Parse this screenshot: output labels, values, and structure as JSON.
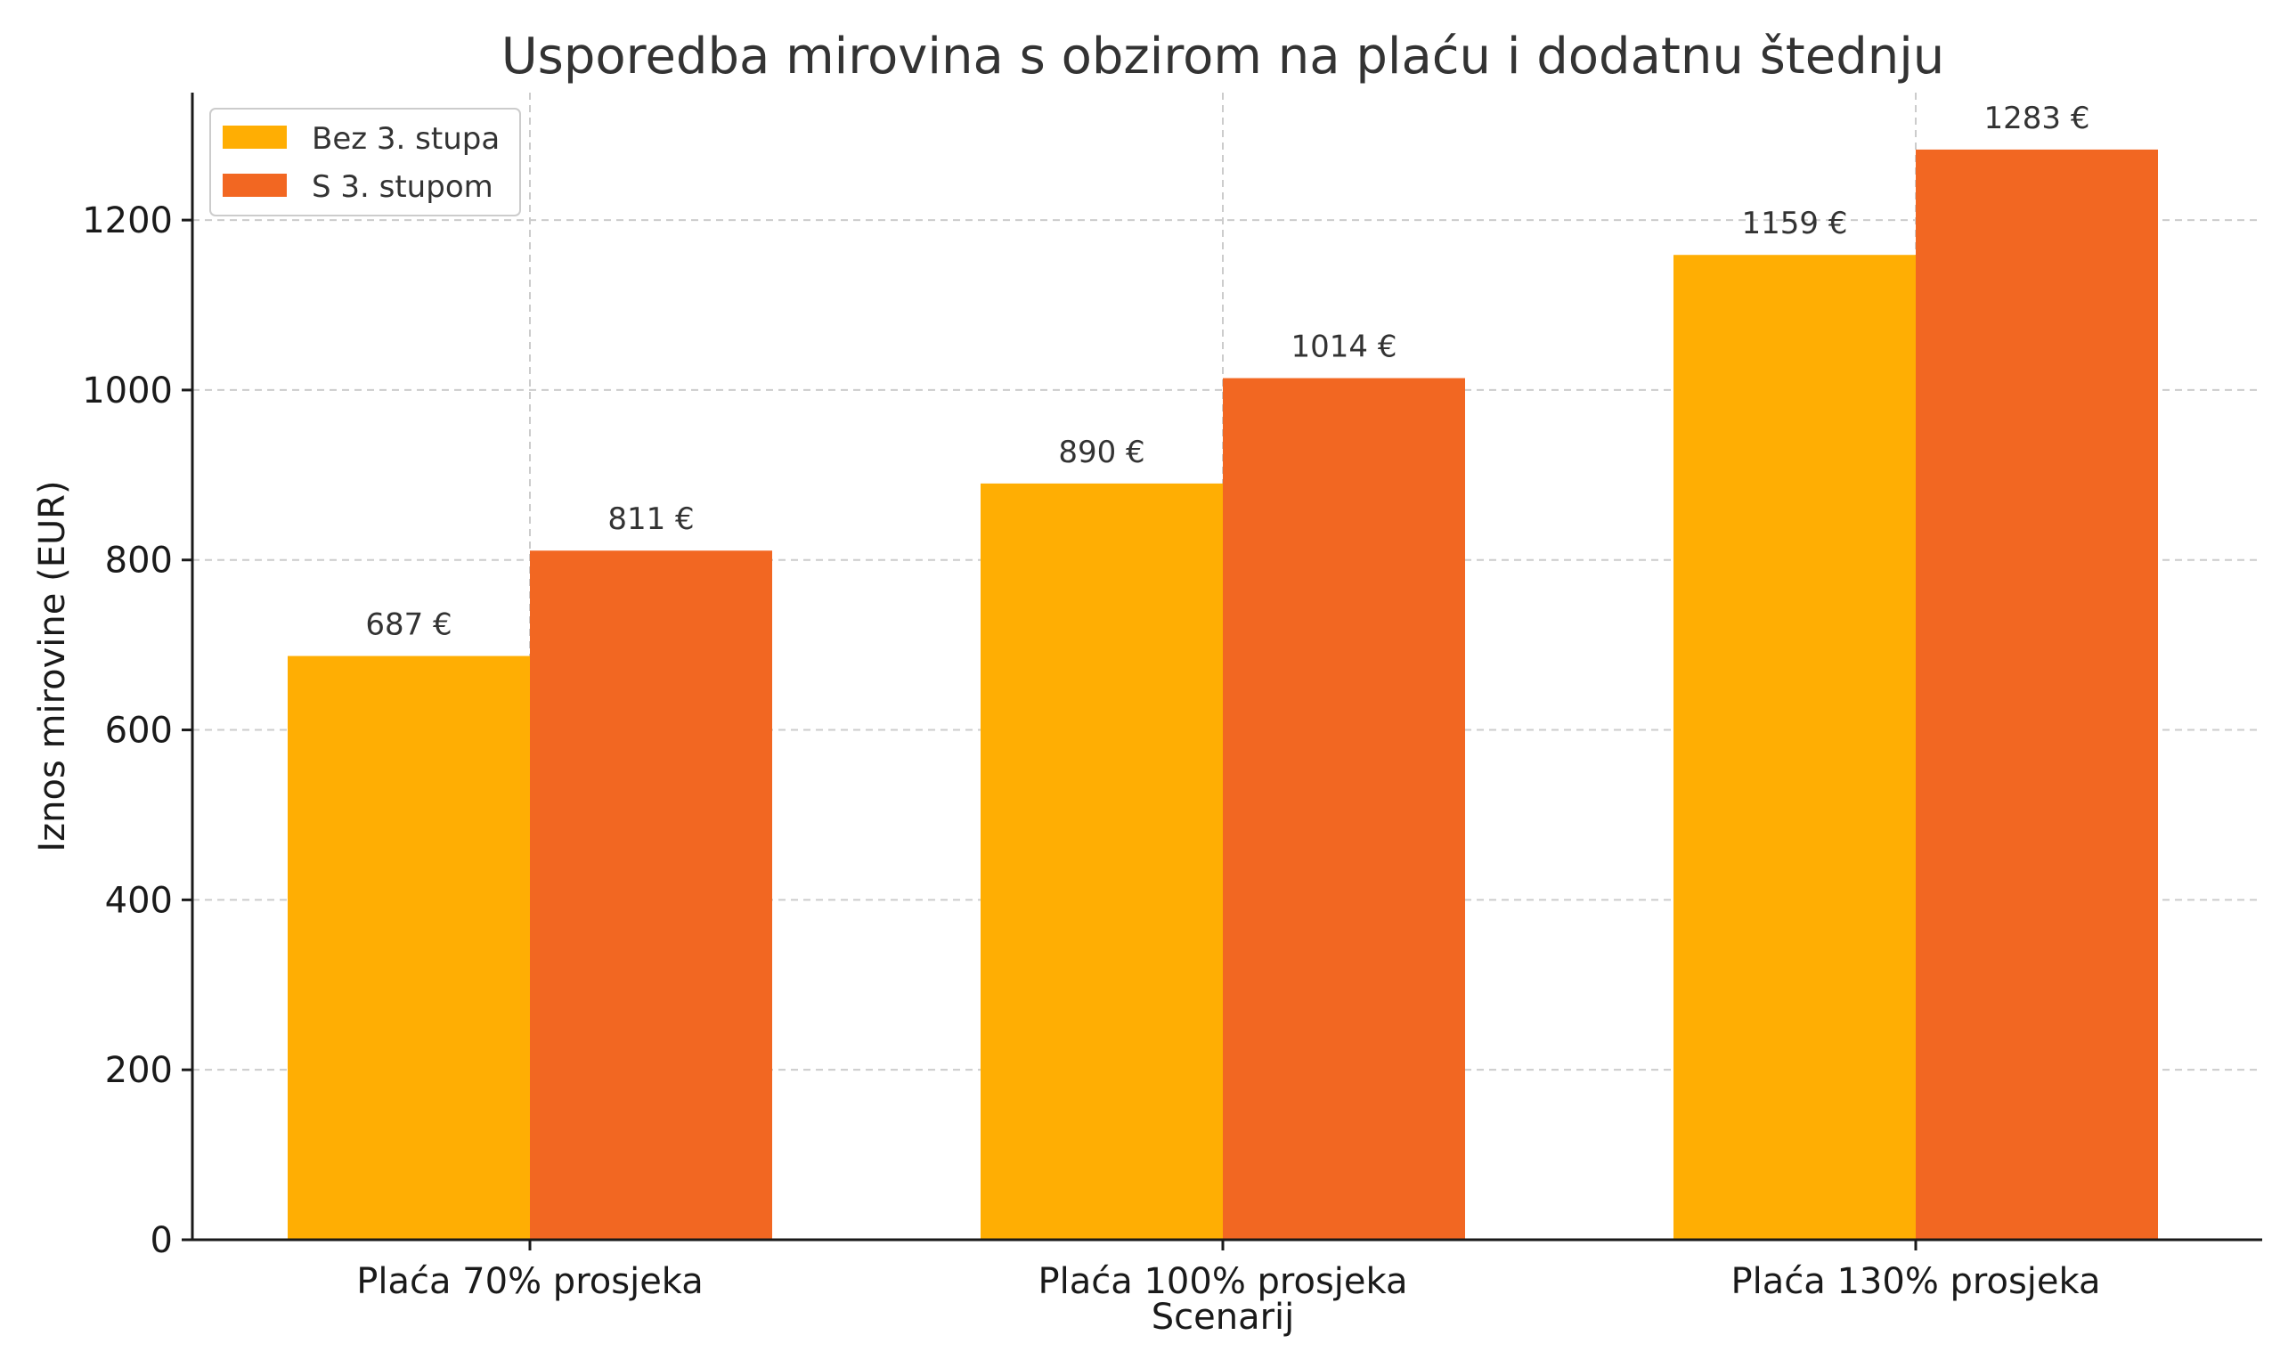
{
  "chart_data": {
    "type": "bar",
    "title": "Usporedba mirovina s obzirom na plaću i dodatnu štednju",
    "xlabel": "Scenarij",
    "ylabel": "Iznos mirovine (EUR)",
    "categories": [
      "Plaća 70% prosjeka",
      "Plaća 100% prosjeka",
      "Plaća 130% prosjeka"
    ],
    "series": [
      {
        "name": "Bez 3. stupa",
        "color": "#FFAE03",
        "values": [
          687,
          890,
          1159
        ]
      },
      {
        "name": "S 3. stupom",
        "color": "#F26722",
        "values": [
          811,
          1014,
          1283
        ]
      }
    ],
    "value_label_suffix": " €",
    "ylim": [
      0,
      1350
    ],
    "yticks": [
      0,
      200,
      400,
      600,
      800,
      1000,
      1200
    ],
    "grid": true,
    "legend_position": "top-left"
  }
}
